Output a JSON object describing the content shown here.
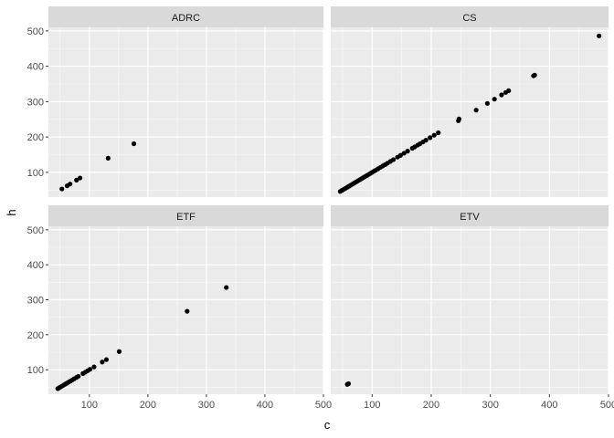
{
  "chart_data": {
    "type": "scatter",
    "xlabel": "c",
    "ylabel": "h",
    "xlim": [
      30,
      500
    ],
    "ylim": [
      30,
      510
    ],
    "x_ticks": [
      100,
      200,
      300,
      400,
      500
    ],
    "y_ticks": [
      100,
      200,
      300,
      400,
      500
    ],
    "grid": true,
    "colors": {
      "panel_bg": "#ebebeb",
      "strip_bg": "#d9d9d9",
      "grid_major": "#ffffff",
      "point": "#000000"
    },
    "panels": [
      {
        "label": "ADRC",
        "points": [
          [
            53,
            53
          ],
          [
            62,
            62
          ],
          [
            67,
            67
          ],
          [
            78,
            78
          ],
          [
            84,
            84
          ],
          [
            132,
            140
          ],
          [
            176,
            181
          ]
        ]
      },
      {
        "label": "CS",
        "points": [
          [
            46,
            46
          ],
          [
            49,
            49
          ],
          [
            52,
            52
          ],
          [
            55,
            55
          ],
          [
            58,
            58
          ],
          [
            61,
            61
          ],
          [
            64,
            64
          ],
          [
            67,
            67
          ],
          [
            70,
            70
          ],
          [
            73,
            73
          ],
          [
            76,
            76
          ],
          [
            79,
            79
          ],
          [
            82,
            82
          ],
          [
            85,
            85
          ],
          [
            88,
            88
          ],
          [
            91,
            91
          ],
          [
            94,
            94
          ],
          [
            97,
            97
          ],
          [
            100,
            100
          ],
          [
            103,
            103
          ],
          [
            106,
            106
          ],
          [
            110,
            110
          ],
          [
            114,
            114
          ],
          [
            118,
            118
          ],
          [
            122,
            122
          ],
          [
            126,
            126
          ],
          [
            131,
            131
          ],
          [
            136,
            136
          ],
          [
            143,
            143
          ],
          [
            148,
            148
          ],
          [
            154,
            154
          ],
          [
            160,
            160
          ],
          [
            168,
            168
          ],
          [
            172,
            172
          ],
          [
            177,
            177
          ],
          [
            181,
            181
          ],
          [
            186,
            186
          ],
          [
            191,
            191
          ],
          [
            198,
            198
          ],
          [
            205,
            205
          ],
          [
            212,
            212
          ],
          [
            246,
            246
          ],
          [
            247,
            251
          ],
          [
            276,
            276
          ],
          [
            295,
            295
          ],
          [
            307,
            307
          ],
          [
            319,
            319
          ],
          [
            326,
            326
          ],
          [
            331,
            331
          ],
          [
            373,
            373
          ],
          [
            375,
            375
          ],
          [
            484,
            486
          ]
        ]
      },
      {
        "label": "ETF",
        "points": [
          [
            46,
            46
          ],
          [
            48,
            48
          ],
          [
            50,
            50
          ],
          [
            53,
            53
          ],
          [
            56,
            56
          ],
          [
            59,
            59
          ],
          [
            62,
            62
          ],
          [
            65,
            65
          ],
          [
            68,
            68
          ],
          [
            71,
            71
          ],
          [
            74,
            74
          ],
          [
            78,
            78
          ],
          [
            81,
            81
          ],
          [
            89,
            89
          ],
          [
            93,
            93
          ],
          [
            97,
            97
          ],
          [
            101,
            101
          ],
          [
            108,
            108
          ],
          [
            122,
            122
          ],
          [
            129,
            129
          ],
          [
            151,
            152
          ],
          [
            267,
            267
          ],
          [
            334,
            335
          ]
        ]
      },
      {
        "label": "ETV",
        "points": [
          [
            58,
            58
          ],
          [
            60,
            60
          ]
        ]
      }
    ]
  }
}
